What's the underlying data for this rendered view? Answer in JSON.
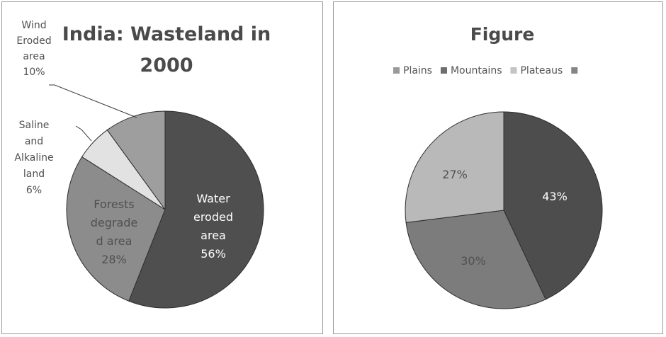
{
  "chart_data": [
    {
      "type": "pie",
      "title": "India: Wasteland in 2000",
      "title_lines": [
        "India: Wasteland in",
        "2000"
      ],
      "slices": [
        {
          "label": "Water eroded area",
          "value": 56,
          "color": "#4f4f4f",
          "text_lines": [
            "Water",
            "eroded",
            "area",
            "56%"
          ]
        },
        {
          "label": "Forests degrade d area",
          "value": 28,
          "color": "#8c8c8c",
          "text_lines": [
            "Forests",
            "degrade",
            "d area",
            "28%"
          ]
        },
        {
          "label": "Saline and Alkaline land",
          "value": 6,
          "color": "#e2e2e2",
          "text_lines": [
            "Saline",
            "and",
            "Alkaline",
            "land",
            "6%"
          ]
        },
        {
          "label": "Wind Eroded area",
          "value": 10,
          "color": "#9e9e9e",
          "text_lines": [
            "Wind",
            "Eroded",
            "area",
            "10%"
          ]
        }
      ]
    },
    {
      "type": "pie",
      "title": "Figure",
      "legend_position": "top",
      "legend": [
        {
          "label": "Plains",
          "color": "#9a9a9a"
        },
        {
          "label": "Mountains",
          "color": "#6e6e6e"
        },
        {
          "label": "Plateaus",
          "color": "#c4c4c4"
        },
        {
          "label": "",
          "color": "#858585"
        }
      ],
      "slices": [
        {
          "label": "Plains",
          "value": 43,
          "color": "#4d4d4d",
          "text": "43%"
        },
        {
          "label": "Mountains",
          "value": 30,
          "color": "#7c7c7c",
          "text": "30%"
        },
        {
          "label": "Plateaus",
          "value": 27,
          "color": "#b9b9b9",
          "text": "27%"
        }
      ]
    }
  ]
}
